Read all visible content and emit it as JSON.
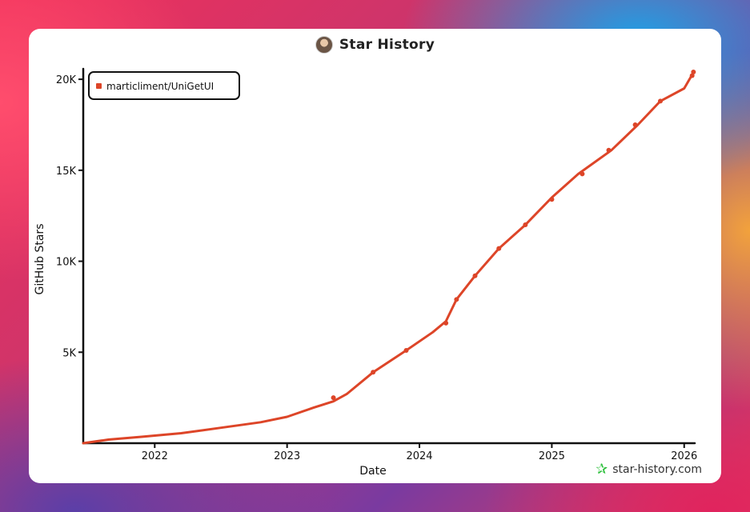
{
  "chart_data": {
    "type": "line",
    "title": "Star History",
    "xlabel": "Date",
    "ylabel": "GitHub Stars",
    "x_ticks": [
      "2022",
      "2023",
      "2024",
      "2025",
      "2026"
    ],
    "y_ticks": [
      "5K",
      "10K",
      "15K",
      "20K"
    ],
    "xlim": [
      2021.46,
      2026.08
    ],
    "ylim": [
      0,
      20400
    ],
    "legend_position": "top-left",
    "series": [
      {
        "name": "marticliment/UniGetUI",
        "color": "#dd4528",
        "x": [
          2021.46,
          2021.65,
          2021.9,
          2022.2,
          2022.5,
          2022.8,
          2023.0,
          2023.2,
          2023.35,
          2023.45,
          2023.65,
          2023.9,
          2024.1,
          2024.2,
          2024.28,
          2024.42,
          2024.6,
          2024.8,
          2025.0,
          2025.2,
          2025.45,
          2025.65,
          2025.82,
          2026.0,
          2026.06
        ],
        "y": [
          0,
          200,
          350,
          550,
          850,
          1150,
          1450,
          1950,
          2300,
          2700,
          3900,
          5100,
          6100,
          6700,
          7900,
          9200,
          10700,
          12000,
          13500,
          14800,
          16100,
          17500,
          18800,
          19500,
          20250
        ]
      }
    ],
    "series_markers_x": [
      2023.35,
      2023.65,
      2023.9,
      2024.2,
      2024.28,
      2024.42,
      2024.6,
      2024.8,
      2025.0,
      2025.23,
      2025.43,
      2025.63,
      2025.82,
      2026.06,
      2026.07
    ],
    "series_markers_y": [
      2500,
      3900,
      5100,
      6600,
      7900,
      9200,
      10700,
      12000,
      13400,
      14800,
      16100,
      17500,
      18800,
      20200,
      20400
    ]
  },
  "watermark": "star-history.com"
}
